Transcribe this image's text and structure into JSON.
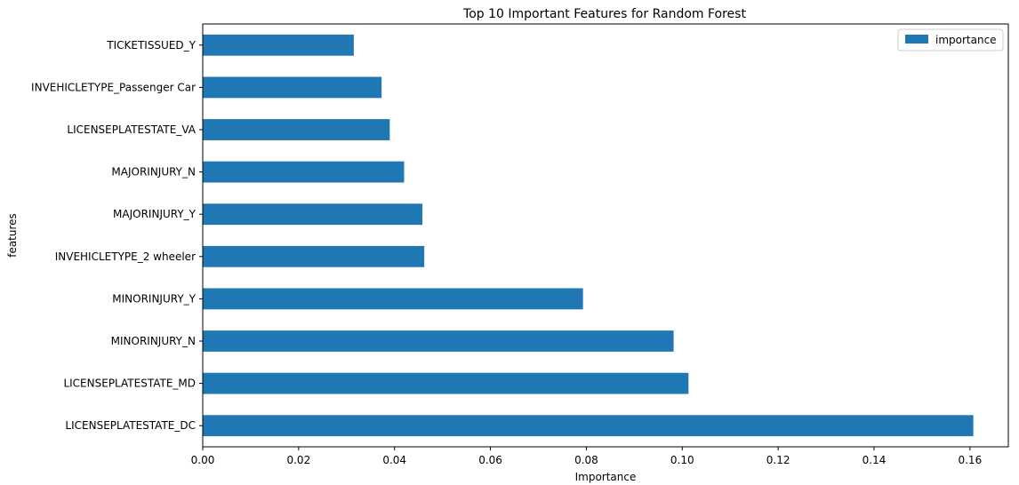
{
  "chart_data": {
    "type": "bar",
    "orientation": "horizontal",
    "title": "Top 10 Important Features for Random Forest",
    "xlabel": "Importance",
    "ylabel": "features",
    "xlim": [
      0.0,
      0.168
    ],
    "xticks": [
      "0.00",
      "0.02",
      "0.04",
      "0.06",
      "0.08",
      "0.10",
      "0.12",
      "0.14",
      "0.16"
    ],
    "grid": false,
    "legend_position": "top-right",
    "bar_color": "#1f77b4",
    "categories": [
      "TICKETISSUED_Y",
      "INVEHICLETYPE_Passenger Car",
      "LICENSEPLATESTATE_VA",
      "MAJORINJURY_N",
      "MAJORINJURY_Y",
      "INVEHICLETYPE_2 wheeler",
      "MINORINJURY_Y",
      "MINORINJURY_N",
      "LICENSEPLATESTATE_MD",
      "LICENSEPLATESTATE_DC"
    ],
    "series": [
      {
        "name": "importance",
        "values": [
          0.0315,
          0.0373,
          0.039,
          0.042,
          0.0458,
          0.0462,
          0.0793,
          0.0982,
          0.1013,
          0.1607
        ]
      }
    ]
  }
}
